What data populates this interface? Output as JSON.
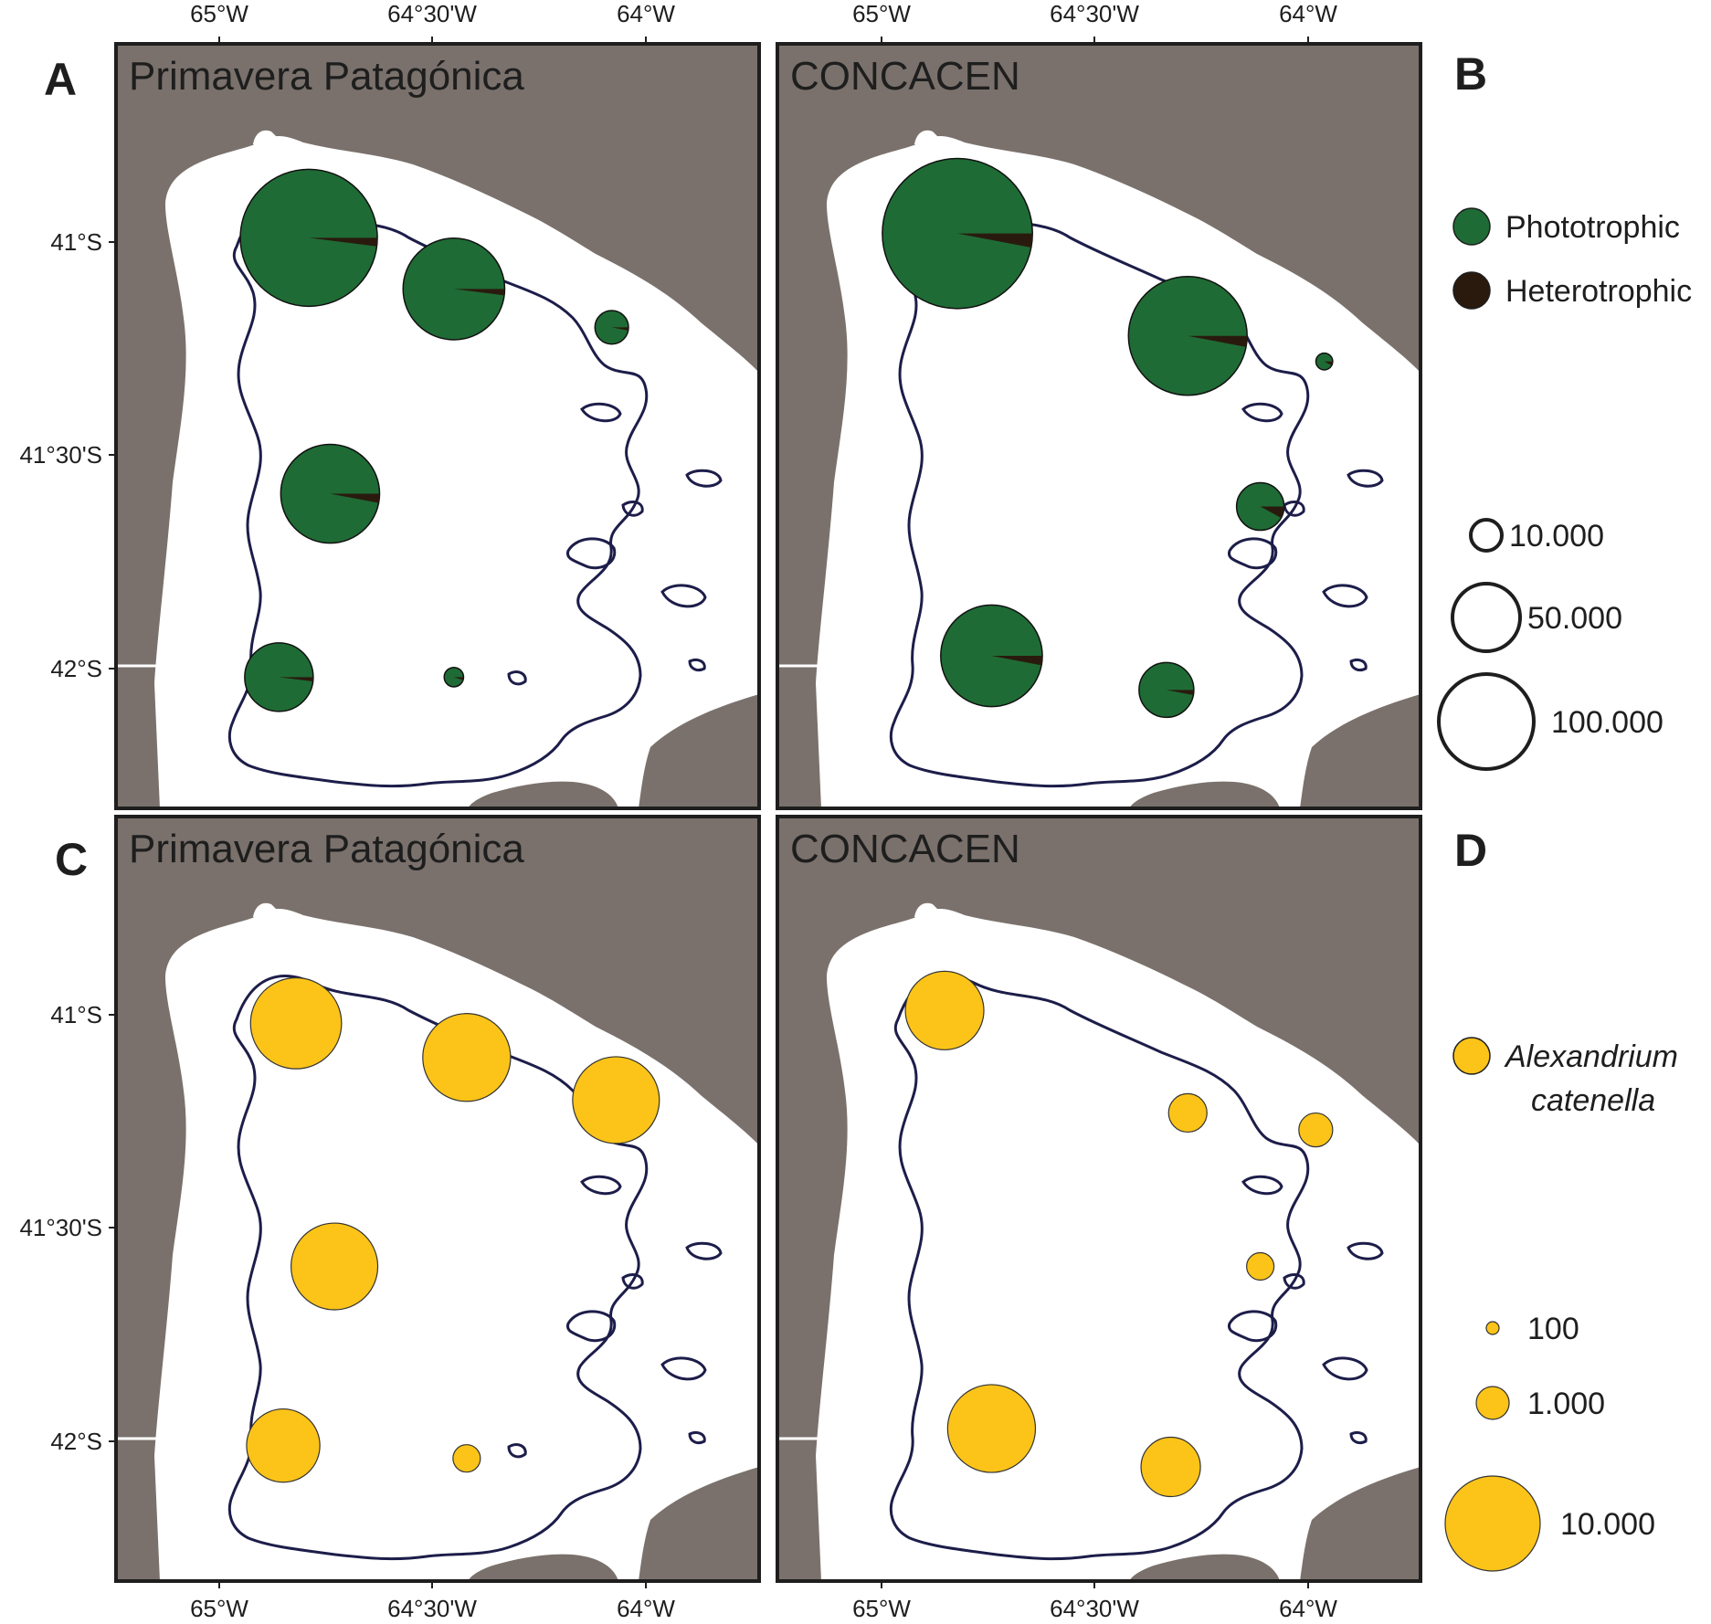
{
  "colors": {
    "land": "#7a716c",
    "water": "#ffffff",
    "contour": "#1d1d4a",
    "phototrophic": "#1f6b35",
    "heterotrophic": "#2a1a0e",
    "alexandrium": "#fcc419",
    "frame": "#1e1e1e"
  },
  "axes": {
    "top_lon_labels": [
      "65°W",
      "64°30'W",
      "64°W"
    ],
    "bottom_lon_labels": [
      "65°W",
      "64°30'W",
      "64°W"
    ],
    "lat_labels": [
      "41°S",
      "41°30'S",
      "42°S"
    ]
  },
  "panels": [
    {
      "letter": "A",
      "title": "Primavera Patagónica"
    },
    {
      "letter": "B",
      "title": "CONCACEN"
    },
    {
      "letter": "C",
      "title": "Primavera Patagónica"
    },
    {
      "letter": "D",
      "title": "CONCACEN"
    }
  ],
  "legend_top": {
    "categories": [
      {
        "label": "Phototrophic",
        "icon": "green-circle"
      },
      {
        "label": "Heterotrophic",
        "icon": "dark-brown-circle"
      }
    ],
    "sizes": [
      {
        "label": "10.000",
        "value": 10000
      },
      {
        "label": "50.000",
        "value": 50000
      },
      {
        "label": "100.000",
        "value": 100000
      }
    ]
  },
  "legend_bottom": {
    "species_line1": "Alexandrium",
    "species_line2": "catenella",
    "sizes": [
      {
        "label": "100",
        "value": 100
      },
      {
        "label": "1.000",
        "value": 1000
      },
      {
        "label": "10.000",
        "value": 10000
      }
    ]
  },
  "map_data": {
    "lon_range": [
      -65.25,
      -63.75
    ],
    "lat_range": [
      -42.3,
      -40.6
    ],
    "A": [
      {
        "lon": -64.79,
        "lat": -40.99,
        "total": 100000,
        "heterotrophic_fraction": 0.02
      },
      {
        "lon": -64.45,
        "lat": -41.11,
        "total": 55000,
        "heterotrophic_fraction": 0.02
      },
      {
        "lon": -64.08,
        "lat": -41.2,
        "total": 6000,
        "heterotrophic_fraction": 0.03
      },
      {
        "lon": -64.74,
        "lat": -41.59,
        "total": 52000,
        "heterotrophic_fraction": 0.03
      },
      {
        "lon": -64.86,
        "lat": -42.02,
        "total": 25000,
        "heterotrophic_fraction": 0.02
      },
      {
        "lon": -64.45,
        "lat": -42.02,
        "total": 2000,
        "heterotrophic_fraction": 0.05
      }
    ],
    "B": [
      {
        "lon": -64.82,
        "lat": -40.98,
        "total": 120000,
        "heterotrophic_fraction": 0.03
      },
      {
        "lon": -64.28,
        "lat": -41.22,
        "total": 75000,
        "heterotrophic_fraction": 0.03
      },
      {
        "lon": -63.96,
        "lat": -41.28,
        "total": 1500,
        "heterotrophic_fraction": 0.08
      },
      {
        "lon": -64.11,
        "lat": -41.62,
        "total": 12000,
        "heterotrophic_fraction": 0.08
      },
      {
        "lon": -64.74,
        "lat": -41.97,
        "total": 55000,
        "heterotrophic_fraction": 0.03
      },
      {
        "lon": -64.33,
        "lat": -42.05,
        "total": 16000,
        "heterotrophic_fraction": 0.03
      }
    ],
    "C": [
      {
        "lon": -64.82,
        "lat": -41.02,
        "value": 5500
      },
      {
        "lon": -64.42,
        "lat": -41.1,
        "value": 4500
      },
      {
        "lon": -64.07,
        "lat": -41.2,
        "value": 4200
      },
      {
        "lon": -64.73,
        "lat": -41.59,
        "value": 4200
      },
      {
        "lon": -64.85,
        "lat": -42.01,
        "value": 1800
      },
      {
        "lon": -64.42,
        "lat": -42.04,
        "value": 100
      }
    ],
    "D": [
      {
        "lon": -64.85,
        "lat": -40.99,
        "value": 2500
      },
      {
        "lon": -64.28,
        "lat": -41.23,
        "value": 200
      },
      {
        "lon": -63.98,
        "lat": -41.27,
        "value": 150
      },
      {
        "lon": -64.11,
        "lat": -41.59,
        "value": 100
      },
      {
        "lon": -64.74,
        "lat": -41.97,
        "value": 4500
      },
      {
        "lon": -64.32,
        "lat": -42.06,
        "value": 750
      }
    ]
  }
}
